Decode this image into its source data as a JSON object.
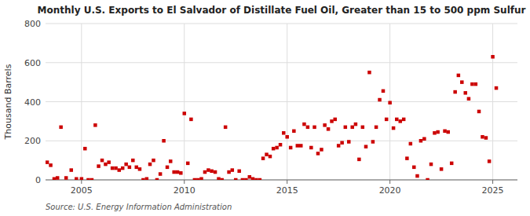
{
  "chart_data": {
    "type": "scatter",
    "title": "Monthly U.S. Exports to El Salvador of Distillate Fuel Oil, Greater than 15 to 500 ppm Sulfur",
    "ylabel": "Thousand Barrels",
    "annotations": [
      "Source: U.S. Energy Information Administration"
    ],
    "color": "#cc0000",
    "marker": "square",
    "grid": true,
    "xlim": [
      2003.25,
      2026.2
    ],
    "xticks": [
      2005,
      2010,
      2015,
      2020,
      2025
    ],
    "ylim": [
      0,
      800
    ],
    "yticks": [
      0,
      200,
      400,
      600,
      800
    ],
    "x": [
      2003.33,
      2003.5,
      2003.67,
      2003.83,
      2004.0,
      2004.25,
      2004.5,
      2004.75,
      2005.0,
      2005.17,
      2005.33,
      2005.5,
      2005.67,
      2005.83,
      2006.0,
      2006.17,
      2006.33,
      2006.5,
      2006.67,
      2006.83,
      2007.0,
      2007.17,
      2007.33,
      2007.5,
      2007.67,
      2007.83,
      2008.0,
      2008.17,
      2008.33,
      2008.5,
      2008.67,
      2008.83,
      2009.0,
      2009.17,
      2009.33,
      2009.5,
      2009.67,
      2009.83,
      2010.0,
      2010.17,
      2010.33,
      2010.5,
      2010.67,
      2010.83,
      2011.0,
      2011.17,
      2011.33,
      2011.5,
      2011.67,
      2011.83,
      2012.0,
      2012.17,
      2012.33,
      2012.5,
      2012.67,
      2012.83,
      2013.0,
      2013.17,
      2013.33,
      2013.5,
      2013.67,
      2013.83,
      2014.0,
      2014.17,
      2014.33,
      2014.5,
      2014.67,
      2014.83,
      2015.0,
      2015.17,
      2015.33,
      2015.5,
      2015.67,
      2015.83,
      2016.0,
      2016.17,
      2016.33,
      2016.5,
      2016.67,
      2016.83,
      2017.0,
      2017.17,
      2017.33,
      2017.5,
      2017.67,
      2017.83,
      2018.0,
      2018.17,
      2018.33,
      2018.5,
      2018.67,
      2018.83,
      2019.0,
      2019.17,
      2019.33,
      2019.5,
      2019.67,
      2019.83,
      2020.0,
      2020.17,
      2020.33,
      2020.5,
      2020.67,
      2020.83,
      2021.0,
      2021.17,
      2021.33,
      2021.5,
      2021.67,
      2021.83,
      2022.0,
      2022.17,
      2022.33,
      2022.5,
      2022.67,
      2022.83,
      2023.0,
      2023.17,
      2023.33,
      2023.5,
      2023.67,
      2023.83,
      2024.0,
      2024.17,
      2024.33,
      2024.5,
      2024.67,
      2024.83,
      2025.0,
      2025.17
    ],
    "values": [
      90,
      75,
      5,
      10,
      270,
      10,
      50,
      5,
      5,
      160,
      0,
      0,
      280,
      70,
      100,
      80,
      90,
      60,
      60,
      50,
      60,
      80,
      65,
      100,
      65,
      55,
      0,
      5,
      80,
      100,
      0,
      30,
      200,
      65,
      95,
      40,
      40,
      35,
      340,
      85,
      310,
      0,
      0,
      5,
      40,
      50,
      45,
      40,
      5,
      0,
      270,
      40,
      50,
      0,
      45,
      0,
      0,
      15,
      5,
      0,
      0,
      110,
      130,
      120,
      160,
      165,
      180,
      240,
      220,
      165,
      250,
      175,
      175,
      285,
      270,
      165,
      270,
      135,
      155,
      280,
      260,
      300,
      310,
      175,
      190,
      270,
      195,
      270,
      285,
      105,
      270,
      170,
      550,
      195,
      270,
      410,
      455,
      310,
      395,
      265,
      310,
      300,
      310,
      110,
      185,
      65,
      20,
      200,
      210,
      0,
      80,
      240,
      245,
      55,
      250,
      245,
      85,
      450,
      535,
      500,
      445,
      415,
      490,
      490,
      350,
      220,
      215,
      95,
      630,
      470
    ]
  }
}
